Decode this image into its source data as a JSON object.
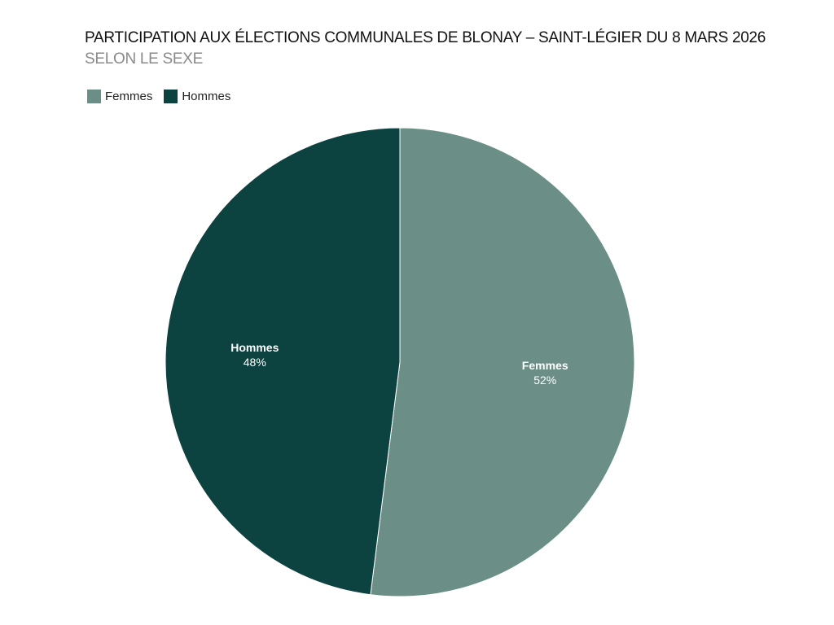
{
  "chart_data": {
    "type": "pie",
    "title": "PARTICIPATION AUX ÉLECTIONS COMMUNALES DE BLONAY – SAINT-LÉGIER DU 8 MARS 2026",
    "subtitle": "SELON LE SEXE",
    "legend_position": "top-left",
    "slices": [
      {
        "name": "Femmes",
        "value": 52,
        "label": "52%",
        "color": "#6b8f86"
      },
      {
        "name": "Hommes",
        "value": 48,
        "label": "48%",
        "color": "#0c4340"
      }
    ]
  }
}
